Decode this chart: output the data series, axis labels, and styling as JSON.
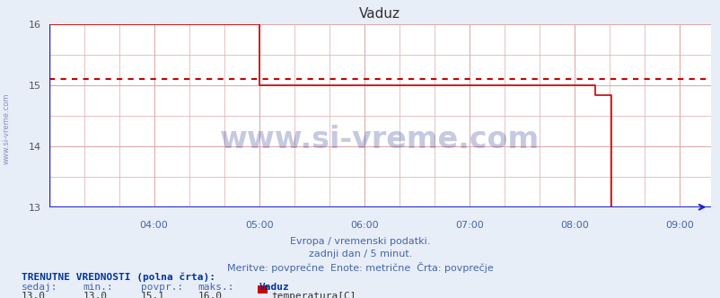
{
  "title": "Vaduz",
  "bg_color": "#e8eef8",
  "plot_bg_color": "#ffffff",
  "line_color": "#cc0000",
  "avg_line_color": "#cc0000",
  "avg_value": 15.1,
  "grid_color": "#ddaaaa",
  "axis_color": "#2222cc",
  "tick_label_color": "#555555",
  "xlabel_color": "#4466aa",
  "title_color": "#333333",
  "ylim": [
    13.0,
    16.0
  ],
  "yticks": [
    13,
    14,
    15,
    16
  ],
  "xlim_hours": [
    3.0,
    9.3
  ],
  "xtick_hours": [
    4,
    5,
    6,
    7,
    8,
    9
  ],
  "xtick_labels": [
    "04:00",
    "05:00",
    "06:00",
    "07:00",
    "08:00",
    "09:00"
  ],
  "footer_lines": [
    "Evropa / vremenski podatki.",
    "zadnji dan / 5 minut.",
    "Meritve: povprečne  Enote: metrične  Črta: povprečje"
  ],
  "bottom_text_bold": "TRENUTNE VREDNOSTI (polna črta):",
  "bottom_row_headers": [
    "sedaj:",
    "min.:",
    "povpr.:",
    "maks.:",
    "Vaduz"
  ],
  "bottom_row_values": [
    "13,0",
    "13,0",
    "15,1",
    "16,0"
  ],
  "bottom_legend_label": "temperatura[C]",
  "bottom_legend_color": "#cc0000",
  "watermark_text": "www.si-vreme.com",
  "watermark_color": "#1a2a8a",
  "side_text": "www.si-vreme.com",
  "temperature_data": [
    [
      3.0,
      16.0
    ],
    [
      5.0,
      16.0
    ],
    [
      5.0,
      15.0
    ],
    [
      8.2,
      15.0
    ],
    [
      8.2,
      14.83
    ],
    [
      8.35,
      14.83
    ],
    [
      8.35,
      13.0
    ],
    [
      9.083,
      13.0
    ]
  ]
}
